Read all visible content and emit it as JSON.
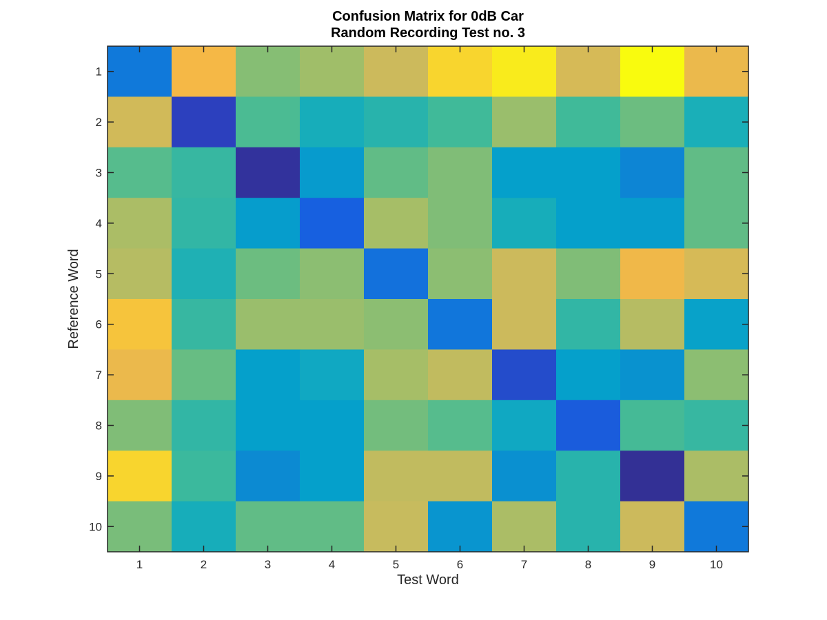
{
  "chart_data": {
    "type": "heatmap",
    "title_lines": [
      "Confusion Matrix for 0dB Car",
      "Random Recording Test no. 3"
    ],
    "xlabel": "Test Word",
    "ylabel": "Reference Word",
    "x_categories": [
      "1",
      "2",
      "3",
      "4",
      "5",
      "6",
      "7",
      "8",
      "9",
      "10"
    ],
    "y_categories": [
      "1",
      "2",
      "3",
      "4",
      "5",
      "6",
      "7",
      "8",
      "9",
      "10"
    ],
    "colormap": "parula",
    "color_range": [
      0,
      1
    ],
    "grid": false,
    "values": [
      [
        0.25,
        0.88,
        0.68,
        0.72,
        0.8,
        0.93,
        0.97,
        0.82,
        1.0,
        0.86
      ],
      [
        0.81,
        0.08,
        0.58,
        0.47,
        0.51,
        0.56,
        0.71,
        0.56,
        0.64,
        0.48
      ],
      [
        0.6,
        0.54,
        0.03,
        0.38,
        0.62,
        0.67,
        0.4,
        0.4,
        0.3,
        0.62
      ],
      [
        0.74,
        0.53,
        0.39,
        0.16,
        0.73,
        0.67,
        0.47,
        0.4,
        0.39,
        0.62
      ],
      [
        0.76,
        0.49,
        0.64,
        0.69,
        0.22,
        0.69,
        0.8,
        0.67,
        0.87,
        0.82
      ],
      [
        0.9,
        0.54,
        0.71,
        0.71,
        0.69,
        0.24,
        0.8,
        0.53,
        0.76,
        0.41
      ],
      [
        0.86,
        0.63,
        0.4,
        0.44,
        0.73,
        0.78,
        0.11,
        0.4,
        0.35,
        0.69
      ],
      [
        0.67,
        0.53,
        0.4,
        0.4,
        0.65,
        0.6,
        0.44,
        0.15,
        0.57,
        0.54
      ],
      [
        0.93,
        0.55,
        0.32,
        0.4,
        0.78,
        0.78,
        0.34,
        0.51,
        0.02,
        0.74
      ],
      [
        0.66,
        0.47,
        0.62,
        0.62,
        0.79,
        0.36,
        0.74,
        0.51,
        0.8,
        0.25
      ]
    ]
  }
}
